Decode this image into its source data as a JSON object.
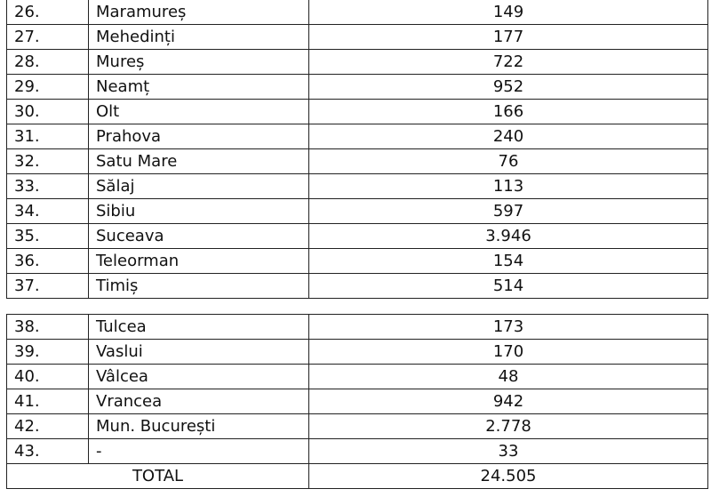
{
  "table_part1": [
    {
      "nr": "26.",
      "county": "Maramureș",
      "value": "149"
    },
    {
      "nr": "27.",
      "county": "Mehedinți",
      "value": "177"
    },
    {
      "nr": "28.",
      "county": "Mureș",
      "value": "722"
    },
    {
      "nr": "29.",
      "county": "Neamț",
      "value": "952"
    },
    {
      "nr": "30.",
      "county": "Olt",
      "value": "166"
    },
    {
      "nr": "31.",
      "county": "Prahova",
      "value": "240"
    },
    {
      "nr": "32.",
      "county": "Satu Mare",
      "value": "76"
    },
    {
      "nr": "33.",
      "county": "Sălaj",
      "value": "113"
    },
    {
      "nr": "34.",
      "county": "Sibiu",
      "value": "597"
    },
    {
      "nr": "35.",
      "county": "Suceava",
      "value": "3.946"
    },
    {
      "nr": "36.",
      "county": "Teleorman",
      "value": "154"
    },
    {
      "nr": "37.",
      "county": "Timiș",
      "value": "514"
    }
  ],
  "table_part2": [
    {
      "nr": "38.",
      "county": "Tulcea",
      "value": "173"
    },
    {
      "nr": "39.",
      "county": "Vaslui",
      "value": "170"
    },
    {
      "nr": "40.",
      "county": "Vâlcea",
      "value": "48"
    },
    {
      "nr": "41.",
      "county": "Vrancea",
      "value": "942"
    },
    {
      "nr": "42.",
      "county": "Mun. București",
      "value": "2.778"
    },
    {
      "nr": "43.",
      "county": "-",
      "value": "33"
    }
  ],
  "total": {
    "label": "TOTAL",
    "value": "24.505"
  }
}
